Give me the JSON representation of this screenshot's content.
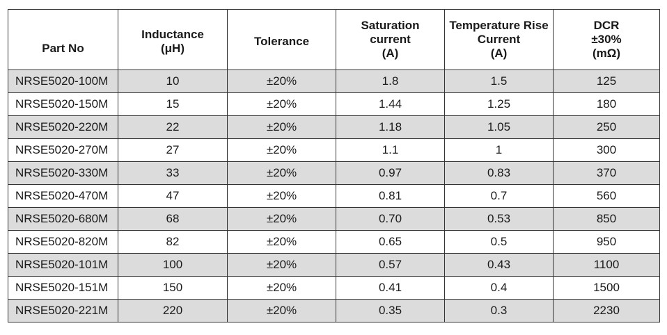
{
  "table": {
    "headers": [
      {
        "lines": [
          "Part No"
        ]
      },
      {
        "lines": [
          "Inductance",
          "(μH)"
        ]
      },
      {
        "lines": [
          "Tolerance"
        ]
      },
      {
        "lines": [
          "Saturation",
          "current",
          "(A)"
        ]
      },
      {
        "lines": [
          "Temperature Rise",
          "Current",
          "(A)"
        ]
      },
      {
        "lines": [
          "DCR",
          "±30%",
          "(mΩ)"
        ]
      }
    ],
    "rows": [
      [
        "NRSE5020-100M",
        "10",
        "±20%",
        "1.8",
        "1.5",
        "125"
      ],
      [
        "NRSE5020-150M",
        "15",
        "±20%",
        "1.44",
        "1.25",
        "180"
      ],
      [
        "NRSE5020-220M",
        "22",
        "±20%",
        "1.18",
        "1.05",
        "250"
      ],
      [
        "NRSE5020-270M",
        "27",
        "±20%",
        "1.1",
        "1",
        "300"
      ],
      [
        "NRSE5020-330M",
        "33",
        "±20%",
        "0.97",
        "0.83",
        "370"
      ],
      [
        "NRSE5020-470M",
        "47",
        "±20%",
        "0.81",
        "0.7",
        "560"
      ],
      [
        "NRSE5020-680M",
        "68",
        "±20%",
        "0.70",
        "0.53",
        "850"
      ],
      [
        "NRSE5020-820M",
        "82",
        "±20%",
        "0.65",
        "0.5",
        "950"
      ],
      [
        "NRSE5020-101M",
        "100",
        "±20%",
        "0.57",
        "0.43",
        "1100"
      ],
      [
        "NRSE5020-151M",
        "150",
        "±20%",
        "0.41",
        "0.4",
        "1500"
      ],
      [
        "NRSE5020-221M",
        "220",
        "±20%",
        "0.35",
        "0.3",
        "2230"
      ]
    ],
    "shade_color": "#dcdcdc"
  }
}
